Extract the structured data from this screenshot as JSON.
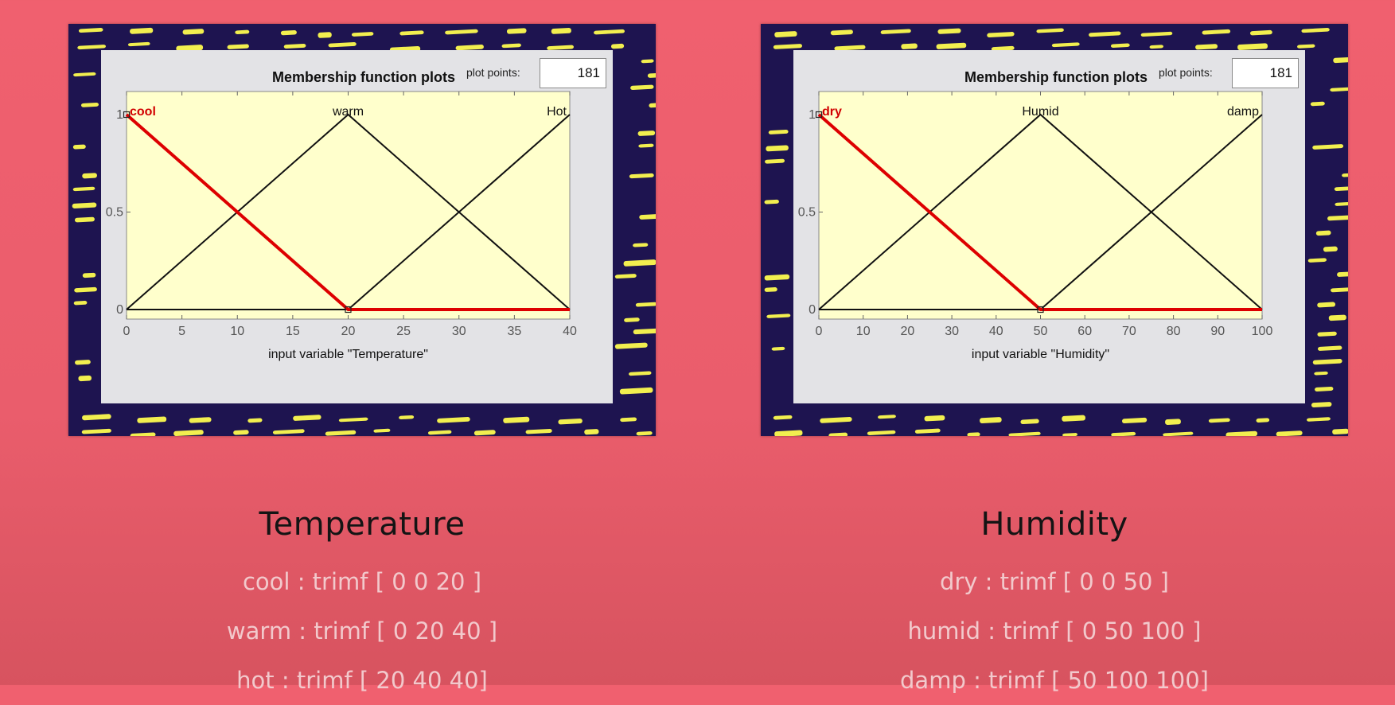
{
  "panels": [
    {
      "window_title": "Membership function plots",
      "plot_points_label": "plot points:",
      "plot_points_value": "181",
      "caption_title": "Temperature",
      "definitions": [
        "cool : trimf [ 0 0 20 ]",
        "warm : trimf [ 0 20 40 ]",
        "hot : trimf [ 20 40 40]"
      ]
    },
    {
      "window_title": "Membership function plots",
      "plot_points_label": "plot points:",
      "plot_points_value": "181",
      "caption_title": "Humidity",
      "definitions": [
        "dry : trimf [ 0 0 50 ]",
        "humid : trimf [ 0 50 100 ]",
        "damp : trimf [ 50 100 100]"
      ]
    }
  ],
  "chart_data": [
    {
      "type": "line",
      "xlabel": "input variable \"Temperature\"",
      "ylabel": "",
      "xlim": [
        0,
        40
      ],
      "ylim": [
        0,
        1
      ],
      "xticks": [
        0,
        5,
        10,
        15,
        20,
        25,
        30,
        35,
        40
      ],
      "yticks": [
        0,
        0.5,
        1
      ],
      "ytick_labels": [
        "0",
        "0.5",
        "1"
      ],
      "series": [
        {
          "name": "cool",
          "x": [
            0,
            0,
            20,
            40
          ],
          "y": [
            1,
            1,
            0,
            0
          ],
          "color": "#dd0000",
          "selected": true
        },
        {
          "name": "warm",
          "x": [
            0,
            20,
            40
          ],
          "y": [
            0,
            1,
            0
          ],
          "color": "#111111",
          "selected": false
        },
        {
          "name": "Hot",
          "x": [
            0,
            20,
            40,
            40
          ],
          "y": [
            0,
            0,
            1,
            1
          ],
          "color": "#111111",
          "selected": false
        }
      ]
    },
    {
      "type": "line",
      "xlabel": "input variable \"Humidity\"",
      "ylabel": "",
      "xlim": [
        0,
        100
      ],
      "ylim": [
        0,
        1
      ],
      "xticks": [
        0,
        10,
        20,
        30,
        40,
        50,
        60,
        70,
        80,
        90,
        100
      ],
      "yticks": [
        0,
        0.5,
        1
      ],
      "ytick_labels": [
        "0",
        "0.5",
        "1"
      ],
      "series": [
        {
          "name": "dry",
          "x": [
            0,
            0,
            50,
            100
          ],
          "y": [
            1,
            1,
            0,
            0
          ],
          "color": "#dd0000",
          "selected": true
        },
        {
          "name": "Humid",
          "x": [
            0,
            50,
            100
          ],
          "y": [
            0,
            1,
            0
          ],
          "color": "#111111",
          "selected": false
        },
        {
          "name": "damp",
          "x": [
            0,
            50,
            100,
            100
          ],
          "y": [
            0,
            0,
            1,
            1
          ],
          "color": "#111111",
          "selected": false
        }
      ]
    }
  ],
  "colors": {
    "background": "#ee5f6e",
    "frame": "#1e1450",
    "streak": "#f2ef4f",
    "plot_background": "#ffffcc",
    "selected_series": "#dd0000",
    "caption_text": "#f2c9cc"
  }
}
